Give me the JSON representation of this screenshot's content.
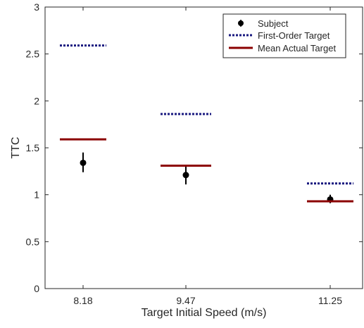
{
  "chart_data": {
    "type": "scatter",
    "xlabel": "Target Initial Speed (m/s)",
    "ylabel": "TTC",
    "categories": [
      "8.18",
      "9.47",
      "11.25"
    ],
    "ylim": [
      0,
      3
    ],
    "yticks": [
      0,
      0.5,
      1,
      1.5,
      2,
      2.5,
      3
    ],
    "ytick_labels": [
      "0",
      "0.5",
      "1",
      "1.5",
      "2",
      "2.5",
      "3"
    ],
    "grid": false,
    "legend_position": "top-right",
    "series": [
      {
        "name": "Subject",
        "kind": "errorbar",
        "color": "#000000",
        "values": [
          1.34,
          1.21,
          0.95
        ],
        "error_low": [
          1.24,
          1.11,
          0.91
        ],
        "error_high": [
          1.45,
          1.32,
          1.0
        ]
      },
      {
        "name": "First-Order Target",
        "kind": "dotted-level",
        "color": "#1a1a80",
        "values": [
          2.59,
          1.86,
          1.12
        ]
      },
      {
        "name": "Mean Actual Target",
        "kind": "solid-level",
        "color": "#8b0000",
        "values": [
          1.59,
          1.31,
          0.93
        ]
      }
    ]
  }
}
